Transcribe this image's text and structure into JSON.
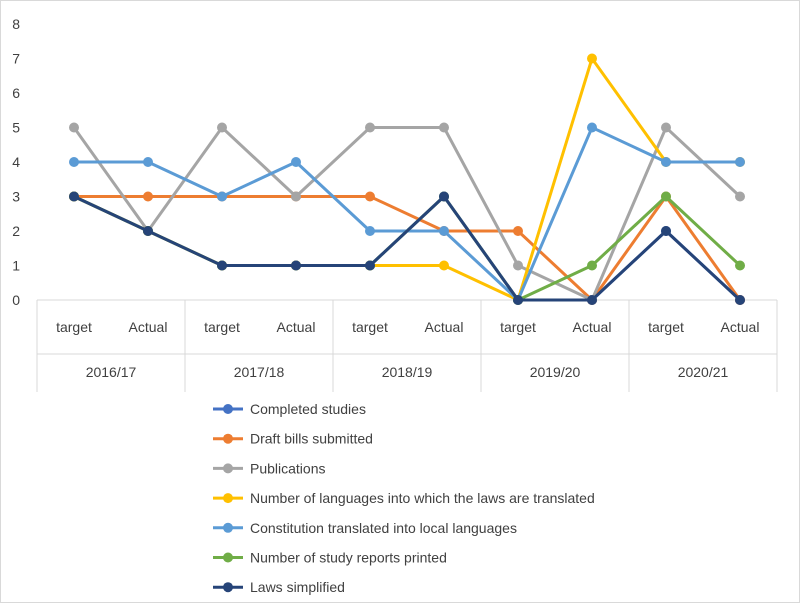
{
  "chart_data": {
    "type": "line",
    "ylim": [
      0,
      8
    ],
    "yticks": [
      0,
      1,
      2,
      3,
      4,
      5,
      6,
      7,
      8
    ],
    "grid": false,
    "legend_position": "bottom",
    "categories": [
      "target",
      "Actual",
      "target",
      "Actual",
      "target",
      "Actual",
      "target",
      "Actual",
      "target",
      "Actual"
    ],
    "groups": [
      "2016/17",
      "2017/18",
      "2018/19",
      "2019/20",
      "2020/21"
    ],
    "series": [
      {
        "name": "Completed studies",
        "color": "#4472C4",
        "values": [
          3,
          2,
          1,
          1,
          1,
          3,
          0,
          0,
          2,
          0
        ]
      },
      {
        "name": "Draft bills submitted",
        "color": "#ED7D31",
        "values": [
          3,
          3,
          3,
          3,
          3,
          2,
          2,
          0,
          3,
          0
        ]
      },
      {
        "name": "Publications",
        "color": "#A5A5A5",
        "values": [
          5,
          2,
          5,
          3,
          5,
          5,
          1,
          0,
          5,
          3
        ]
      },
      {
        "name": "Number of languages into which the laws are translated",
        "color": "#FFC000",
        "values": [
          3,
          2,
          1,
          1,
          1,
          1,
          0,
          7,
          4,
          4
        ]
      },
      {
        "name": "Constitution translated into local languages",
        "color": "#5B9BD5",
        "values": [
          4,
          4,
          3,
          4,
          2,
          2,
          0,
          5,
          4,
          4
        ]
      },
      {
        "name": "Number of study reports printed",
        "color": "#70AD47",
        "values": [
          3,
          2,
          1,
          1,
          1,
          3,
          0,
          1,
          3,
          1
        ]
      },
      {
        "name": "Laws simplified",
        "color": "#264478",
        "values": [
          3,
          2,
          1,
          1,
          1,
          3,
          0,
          0,
          2,
          0
        ]
      }
    ]
  }
}
